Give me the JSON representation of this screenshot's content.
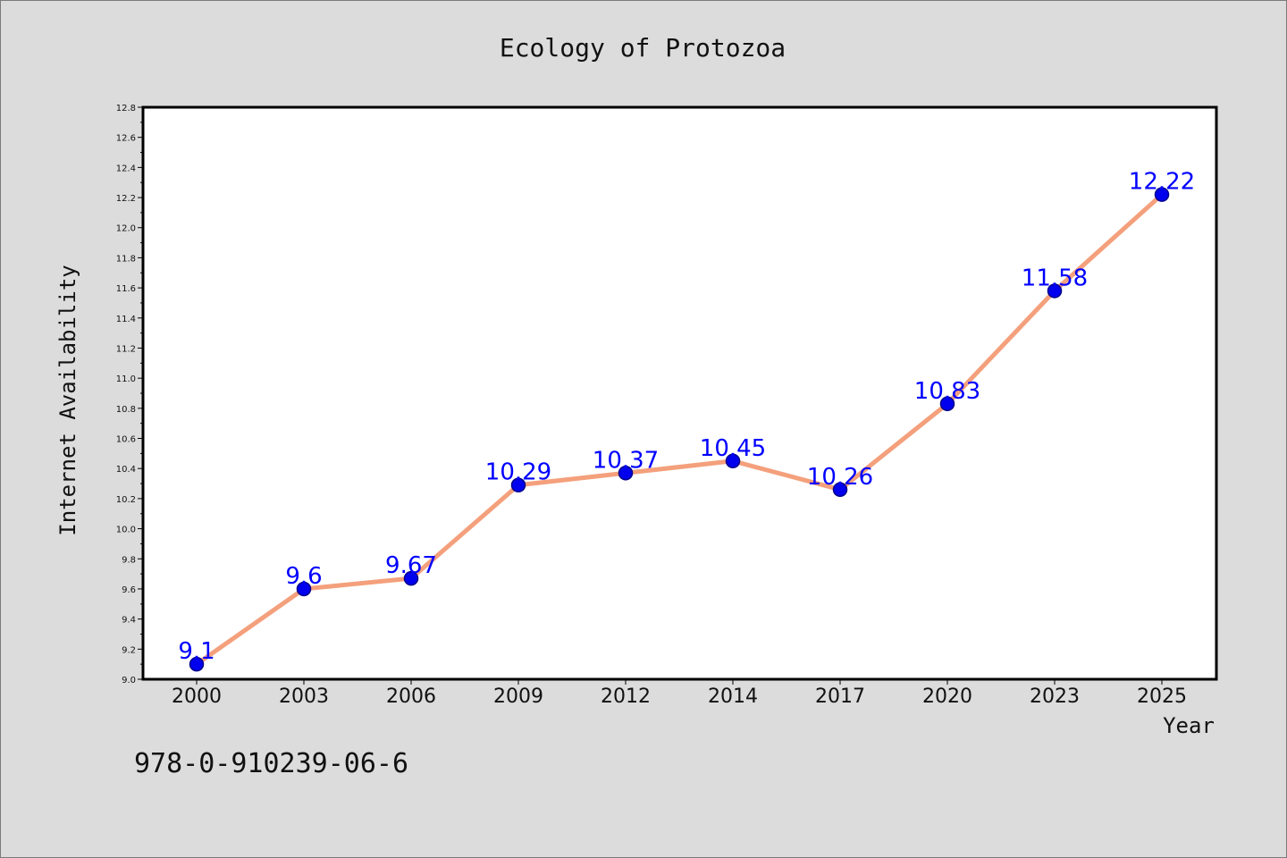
{
  "chart_data": {
    "type": "line",
    "title": "Ecology of Protozoa",
    "xlabel": "Year",
    "ylabel": "Internet Availability",
    "categories": [
      "2000",
      "2003",
      "2006",
      "2009",
      "2012",
      "2014",
      "2017",
      "2020",
      "2023",
      "2025"
    ],
    "series": [
      {
        "values": [
          9.1,
          9.6,
          9.67,
          10.29,
          10.37,
          10.45,
          10.26,
          10.83,
          11.58,
          12.22
        ],
        "labels": [
          "9.1",
          "9.6",
          "9.67",
          "10.29",
          "10.37",
          "10.45",
          "10.26",
          "10.83",
          "11.58",
          "12.22"
        ],
        "line_color": "#f4a07c",
        "marker_color": "#0000ee"
      }
    ],
    "ylim": [
      9.0,
      12.8
    ],
    "yticks": [
      "9.0",
      "9.2",
      "9.4",
      "9.6",
      "9.8",
      "10.0",
      "10.2",
      "10.4",
      "10.6",
      "10.8",
      "11.0",
      "11.2",
      "11.4",
      "11.6",
      "11.8",
      "12.0",
      "12.2",
      "12.4",
      "12.6",
      "12.8"
    ],
    "grid": false,
    "legend": "none",
    "label_color": "#0000ff"
  },
  "footer": {
    "code": "978-0-910239-06-6"
  }
}
